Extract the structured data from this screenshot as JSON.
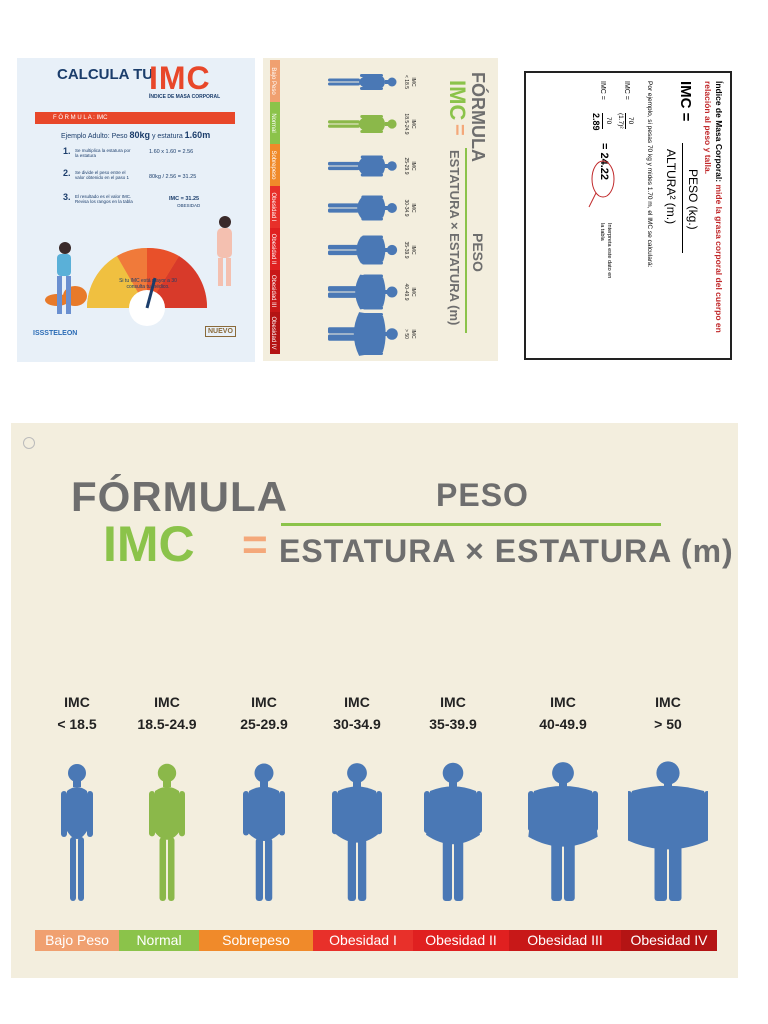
{
  "panel1": {
    "heading": "CALCULA TU",
    "big": "IMC",
    "subtitle": "ÍNDICE DE MASA CORPORAL",
    "band": "F Ó R M U L A :   IMC",
    "example_prefix": "Ejemplo Adulto: Peso",
    "example_weight": "80kg",
    "example_mid": "y estatura",
    "example_height": "1.60m",
    "step1": "Se multiplica la estatura por la estatura",
    "step1_calc": "1.60 x 1.60 = 2.56",
    "step2": "Se divide el peso entre el valor obtenido en el paso 1",
    "step2_calc": "80kg / 2.56 = 31.25",
    "step3": "El resultado es el valor IMC. Revisa los rangos en la tabla",
    "step3_calc": "IMC = 31.25",
    "step3_tag": "OBESIDAD",
    "note": "Si tu IMC está mayor a 30 consulta tu médico.",
    "logo_left": "ISSSTELEON",
    "logo_right": "NUEVO"
  },
  "panel2": {
    "title1": "FÓRMULA",
    "title2": "IMC",
    "eq": "=",
    "numerator": "PESO",
    "denominator": "ESTATURA × ESTATURA (m)"
  },
  "panel3": {
    "title_bold": "Índice de Masa Corporal:",
    "title_red": "mide la grasa corporal del cuerpo en relación al peso y talla.",
    "formula_lhs": "IMC =",
    "formula_num": "PESO (kg.)",
    "formula_den": "ALTURA² (m.)",
    "example": "Por ejemplo, si pesas 70 kg y mides 1.70 m, el IMC se calculará:",
    "line1_lhs": "IMC =",
    "line1_num": "70",
    "line1_den": "(1.7)²",
    "line2_lhs": "IMC =",
    "line2_num": "70",
    "line2_den": "2.89",
    "result": "= 24.22",
    "interpret": "Interpreta este dato en la tabla"
  },
  "panel4": {
    "title1": "FÓRMULA",
    "title2": "IMC",
    "eq": "=",
    "numerator": "PESO",
    "denominator": "ESTATURA × ESTATURA (m)",
    "ranges": [
      {
        "label": "IMC",
        "range": "< 18.5"
      },
      {
        "label": "IMC",
        "range": "18.5-24.9"
      },
      {
        "label": "IMC",
        "range": "25-29.9"
      },
      {
        "label": "IMC",
        "range": "30-34.9"
      },
      {
        "label": "IMC",
        "range": "35-39.9"
      },
      {
        "label": "IMC",
        "range": "40-49.9"
      },
      {
        "label": "IMC",
        "range": "> 50"
      }
    ],
    "categories": [
      {
        "name": "Bajo Peso",
        "color": "#f0a070"
      },
      {
        "name": "Normal",
        "color": "#8bc34a"
      },
      {
        "name": "Sobrepeso",
        "color": "#f08a2a"
      },
      {
        "name": "Obesidad I",
        "color": "#e8302a"
      },
      {
        "name": "Obesidad II",
        "color": "#e02020"
      },
      {
        "name": "Obesidad III",
        "color": "#c81818"
      },
      {
        "name": "Obesidad IV",
        "color": "#b41414"
      }
    ],
    "figure_colors": {
      "blue": "#4a78b5",
      "green": "#8bb84a"
    }
  }
}
